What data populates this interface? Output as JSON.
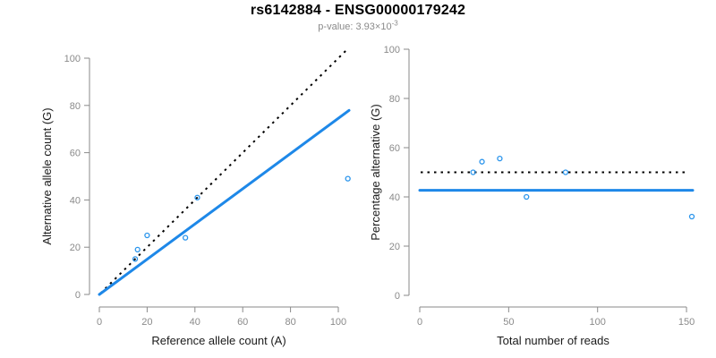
{
  "chart_data": {
    "figure_title": "rs6142884 - ENSG00000179242",
    "subtitle_main": "p-value: 3.93×10",
    "subtitle_exponent": "-3",
    "panels": [
      {
        "type": "scatter",
        "xlabel": "Reference allele count (A)",
        "ylabel": "Alternative allele count (G)",
        "xticks": [
          0,
          20,
          40,
          60,
          80,
          100
        ],
        "yticks": [
          0,
          20,
          40,
          60,
          80,
          100
        ],
        "xlim": [
          0,
          104.5
        ],
        "ylim": [
          0,
          104.5
        ],
        "grid": false,
        "points": [
          [
            15,
            15
          ],
          [
            16,
            19
          ],
          [
            20,
            25
          ],
          [
            36,
            24
          ],
          [
            41,
            41
          ],
          [
            104,
            49
          ]
        ],
        "lines": [
          {
            "name": "identity-line",
            "style": "dotted",
            "color": "#000000",
            "x1": 0.5,
            "y1": 0.5,
            "x2": 104,
            "y2": 104
          },
          {
            "name": "fit-line",
            "style": "solid",
            "color": "#1E88E8",
            "x1": 0,
            "y1": 0,
            "x2": 104.5,
            "y2": 77.9
          }
        ]
      },
      {
        "type": "scatter",
        "xlabel": "Total number of reads",
        "ylabel": "Percentage alternative (G)",
        "xticks": [
          0,
          50,
          100,
          150
        ],
        "yticks": [
          0,
          20,
          40,
          60,
          80,
          100
        ],
        "xlim": [
          0,
          153.5
        ],
        "ylim": [
          0,
          100
        ],
        "grid": false,
        "points": [
          [
            30,
            50
          ],
          [
            35,
            54.3
          ],
          [
            45,
            55.6
          ],
          [
            60,
            40
          ],
          [
            82,
            50
          ],
          [
            153,
            32
          ]
        ],
        "lines": [
          {
            "name": "expected-50-percent-line",
            "style": "dotted",
            "color": "#000000",
            "x1": 0.5,
            "y1": 50,
            "x2": 150.5,
            "y2": 50
          },
          {
            "name": "overall-alt-fraction-line",
            "style": "solid",
            "color": "#1E88E8",
            "x1": 0,
            "y1": 42.7,
            "x2": 153.5,
            "y2": 42.7
          }
        ]
      }
    ]
  },
  "colors": {
    "background": "#FFFFFF",
    "title": "#000000",
    "subtitle": "#8A8A8A",
    "axis": "#8A8A8A",
    "tick_label": "#8A8A8A",
    "axis_title": "#1A1A1A",
    "point_stroke": "#2B95EC",
    "solid_line": "#1E88E8",
    "dotted_line": "#000000"
  }
}
